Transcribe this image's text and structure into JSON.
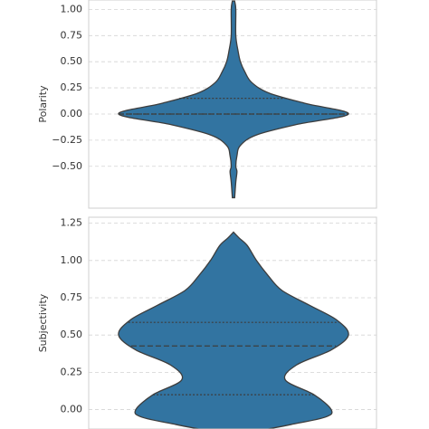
{
  "chart_data": [
    {
      "type": "violin",
      "ylabel": "Polarity",
      "ylim": [
        -0.9,
        1.09
      ],
      "yticks": [
        {
          "value": 1.0,
          "label": "1.00"
        },
        {
          "value": 0.75,
          "label": "0.75"
        },
        {
          "value": 0.5,
          "label": "0.50"
        },
        {
          "value": 0.25,
          "label": "0.25"
        },
        {
          "value": 0.0,
          "label": "0.00"
        },
        {
          "value": -0.25,
          "label": "−0.25"
        },
        {
          "value": -0.5,
          "label": "−0.50"
        }
      ],
      "grid": true,
      "color": "#3274a1",
      "y": [
        1.08,
        1.0,
        0.75,
        0.6,
        0.5,
        0.4,
        0.3,
        0.2,
        0.1,
        0.0,
        -0.1,
        -0.2,
        -0.3,
        -0.4,
        -0.5,
        -0.55,
        -0.65,
        -0.8
      ],
      "density": [
        0.01,
        0.02,
        0.02,
        0.04,
        0.06,
        0.1,
        0.16,
        0.31,
        0.63,
        1.0,
        0.55,
        0.2,
        0.06,
        0.03,
        0.02,
        0.03,
        0.02,
        0.01
      ],
      "quartiles": [
        0.0,
        0.0,
        0.15
      ]
    },
    {
      "type": "violin",
      "ylabel": "Subjectivity",
      "ylim": [
        -0.13,
        1.29
      ],
      "yticks": [
        {
          "value": 1.25,
          "label": "1.25"
        },
        {
          "value": 1.0,
          "label": "1.00"
        },
        {
          "value": 0.75,
          "label": "0.75"
        },
        {
          "value": 0.5,
          "label": "0.50"
        },
        {
          "value": 0.25,
          "label": "0.25"
        },
        {
          "value": 0.0,
          "label": "0.00"
        }
      ],
      "grid": true,
      "color": "#3274a1",
      "y": [
        1.19,
        1.15,
        1.1,
        1.0,
        0.9,
        0.8,
        0.7,
        0.6,
        0.5,
        0.4,
        0.3,
        0.2,
        0.1,
        0.0,
        -0.05,
        -0.1,
        -0.13
      ],
      "density": [
        0.0,
        0.05,
        0.12,
        0.2,
        0.3,
        0.42,
        0.66,
        0.9,
        1.0,
        0.85,
        0.55,
        0.45,
        0.7,
        0.85,
        0.8,
        0.5,
        0.3
      ],
      "quartiles": [
        0.1,
        0.427,
        0.585
      ]
    }
  ]
}
